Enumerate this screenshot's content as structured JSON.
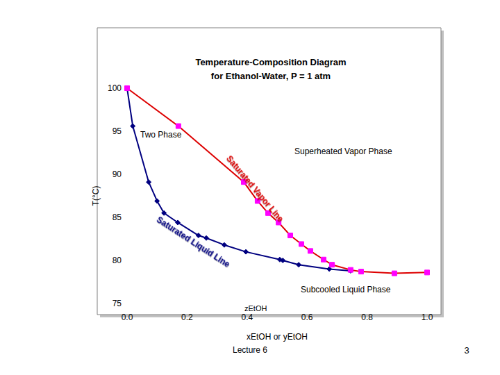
{
  "chart_data": {
    "type": "line",
    "title": "Temperature-Composition Diagram\nfor Ethanol-Water, P = 1 atm",
    "x_label": "xEtOH or yEtOH",
    "y_label": "T(°C)",
    "annotations": [
      "Two Phase",
      "Superheated Vapor Phase",
      "Subcooled Liquid Phase",
      "Saturated Vapor Line",
      "Saturated Liquid Line",
      "zEtOH"
    ],
    "footer": "Lecture 6",
    "page_number": "3",
    "xlim": [
      0,
      1
    ],
    "xticks": [
      {
        "value": 0,
        "label": "0.0"
      },
      0.2,
      0.4,
      0.6,
      0.8,
      {
        "value": 1,
        "label": "1.0"
      }
    ],
    "ylim": [
      75,
      100
    ],
    "yticks": [
      75,
      80,
      85,
      90,
      95,
      100
    ],
    "grid": false,
    "series": [
      {
        "name": "Saturated Liquid Line",
        "color": "#000080",
        "marker": "diamond",
        "line_style": "solid",
        "x": [
          0.0,
          0.019,
          0.072,
          0.1,
          0.123,
          0.169,
          0.238,
          0.264,
          0.324,
          0.396,
          0.509,
          0.519,
          0.572,
          0.674,
          0.745
        ],
        "values": [
          100,
          95.6,
          89.1,
          86.9,
          85.5,
          84.4,
          82.9,
          82.6,
          81.8,
          81.0,
          80.1,
          80.0,
          79.5,
          79.0,
          78.8
        ]
      },
      {
        "name": "Saturated Vapor Line",
        "color": "#dd0000",
        "marker": "square",
        "line_style": "solid",
        "x": [
          0.0,
          0.171,
          0.389,
          0.435,
          0.47,
          0.505,
          0.544,
          0.581,
          0.611,
          0.655,
          0.683,
          0.745,
          0.78,
          0.891,
          1.0
        ],
        "values": [
          100,
          95.6,
          89.1,
          86.9,
          85.5,
          84.4,
          82.9,
          81.9,
          81.1,
          80.1,
          79.5,
          78.9,
          78.7,
          78.5,
          78.6
        ]
      }
    ]
  }
}
